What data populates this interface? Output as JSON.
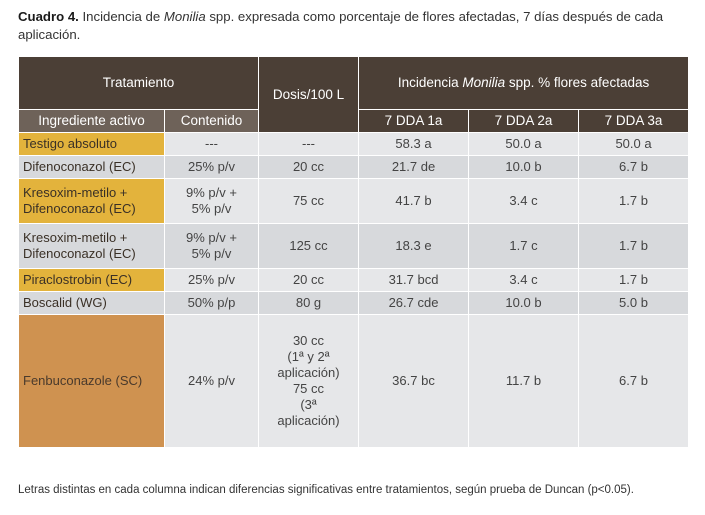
{
  "caption": {
    "label": "Cuadro 4.",
    "text_before": " Incidencia de ",
    "italic": "Monilia",
    "text_after": " spp. expresada como porcentaje de flores afectadas, 7 días después de cada aplicación."
  },
  "header": {
    "tratamiento": "Tratamiento",
    "dosis": "Dosis/100 L",
    "incidencia_before": "Incidencia ",
    "incidencia_italic": "Monilia",
    "incidencia_after": " spp. % flores afectadas",
    "ingrediente": "Ingrediente activo",
    "contenido": "Contenido",
    "dda1": "7 DDA 1a",
    "dda2": "7 DDA 2a",
    "dda3": "7 DDA 3a"
  },
  "rows": [
    {
      "ingrediente": "Testigo absoluto",
      "contenido": "---",
      "dosis": "---",
      "dda1": "58.3 a",
      "dda2": "50.0 a",
      "dda3": "50.0 a"
    },
    {
      "ingrediente": "Difenoconazol (EC)",
      "contenido": "25% p/v",
      "dosis": "20 cc",
      "dda1": "21.7 de",
      "dda2": "10.0 b",
      "dda3": "6.7 b"
    },
    {
      "ingrediente_1": "Kresoxim-metilo +",
      "ingrediente_2": "Difenoconazol (EC)",
      "contenido_1": "9% p/v +",
      "contenido_2": "5% p/v",
      "dosis": "75 cc",
      "dda1": "41.7 b",
      "dda2": "3.4 c",
      "dda3": "1.7 b"
    },
    {
      "ingrediente_1": "Kresoxim-metilo +",
      "ingrediente_2": "Difenoconazol (EC)",
      "contenido_1": "9% p/v +",
      "contenido_2": "5% p/v",
      "dosis": "125 cc",
      "dda1": "18.3 e",
      "dda2": "1.7 c",
      "dda3": "1.7 b"
    },
    {
      "ingrediente": "Piraclostrobin (EC)",
      "contenido": "25% p/v",
      "dosis": "20 cc",
      "dda1": "31.7 bcd",
      "dda2": "3.4 c",
      "dda3": "1.7 b"
    },
    {
      "ingrediente": "Boscalid (WG)",
      "contenido": "50% p/p",
      "dosis": "80 g",
      "dda1": "26.7 cde",
      "dda2": "10.0 b",
      "dda3": "5.0 b"
    },
    {
      "ingrediente": "Fenbuconazole (SC)",
      "contenido": "24% p/v",
      "dosis_lines": [
        "30 cc",
        "(1ª  y 2ª",
        "aplicación)",
        "75 cc",
        "(3ª",
        "aplicación)"
      ],
      "dda1": "36.7 bc",
      "dda2": "11.7 b",
      "dda3": "6.7 b"
    }
  ],
  "footnote": "Letras distintas en cada columna indican diferencias significativas entre tratamientos, según prueba de Duncan (p<0.05).",
  "colors": {
    "header_dark": "#4b3f36",
    "header_sub": "#6e6259",
    "name_yellow": "#e3b33c",
    "name_orange": "#cf9250",
    "row_light": "#e6e7e9",
    "row_alt": "#d7d9dc"
  }
}
